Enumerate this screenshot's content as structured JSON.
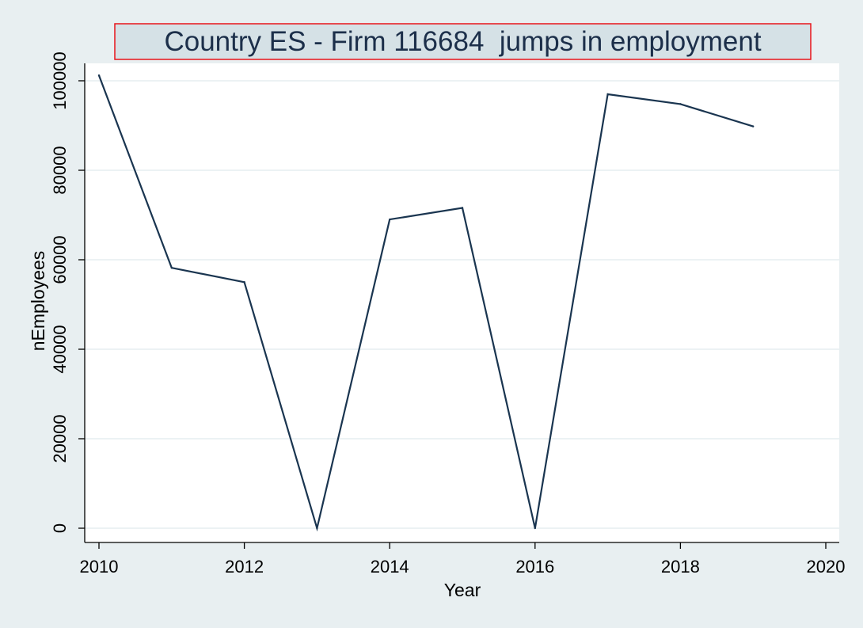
{
  "chart_data": {
    "type": "line",
    "title": "Country ES - Firm 116684  jumps in employment",
    "xlabel": "Year",
    "ylabel": "nEmployees",
    "x": [
      2010,
      2011,
      2012,
      2013,
      2014,
      2015,
      2016,
      2017,
      2018,
      2019
    ],
    "series": [
      {
        "values": [
          101200,
          58200,
          55000,
          0,
          69000,
          71600,
          0,
          97000,
          94800,
          89800
        ]
      }
    ],
    "xlim": [
      2010,
      2020
    ],
    "ylim": [
      0,
      100000
    ],
    "xticks": [
      "2010",
      "2012",
      "2014",
      "2016",
      "2018",
      "2020"
    ],
    "yticks": [
      "0",
      "20000",
      "40000",
      "60000",
      "80000",
      "100000"
    ],
    "grid": true,
    "legend": "none",
    "colors": {
      "background": "#e8eff1",
      "plot_area": "#ffffff",
      "line": "#1a3550",
      "grid": "#e6eef0",
      "title_fill": "#d5e1e6",
      "title_border": "#e8141a",
      "title_text": "#1c2f4a"
    }
  }
}
